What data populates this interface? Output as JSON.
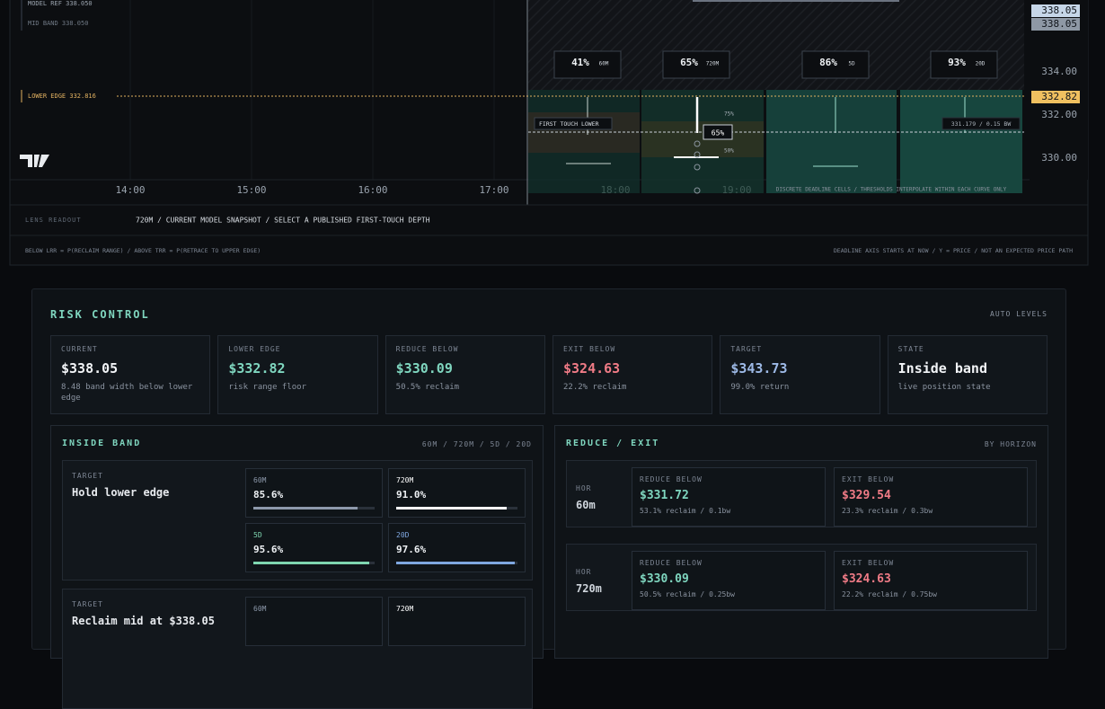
{
  "chart_panel": {
    "model_ref": "MODEL REF 338.050",
    "mid_band": "MID BAND 338.050",
    "lower_edge": "LOWER EDGE 332.816",
    "time_labels": [
      "14:00",
      "15:00",
      "16:00",
      "17:00",
      "18:00",
      "19:00"
    ],
    "price_labels": [
      "338.05",
      "338.05",
      "334.00",
      "332.00",
      "330.00",
      "332.82"
    ],
    "cells": [
      {
        "pct": "41%",
        "horizon": "60M"
      },
      {
        "pct": "65%",
        "horizon": "720M"
      },
      {
        "pct": "86%",
        "horizon": "5D"
      },
      {
        "pct": "93%",
        "horizon": "20D"
      }
    ],
    "first_touch": "FIRST TOUCH LOWER",
    "lens_pct": "65%",
    "level_hi": "75%",
    "level_lo": "50%",
    "probe": "331.179 / 0.15 BW",
    "cells_note": "DISCRETE DEADLINE CELLS / THRESHOLDS INTERPOLATE WITHIN EACH CURVE ONLY",
    "lens_label": "LENS READOUT",
    "lens_text": "720M / CURRENT MODEL SNAPSHOT / SELECT A PUBLISHED FIRST-TOUCH DEPTH",
    "footer_left": "BELOW LRR = P(RECLAIM RANGE) / ABOVE TRR = P(RETRACE TO UPPER EDGE)",
    "footer_right": "DEADLINE AXIS STARTS AT NOW / Y = PRICE / NOT AN EXPECTED PRICE PATH"
  },
  "risk_control": {
    "title": "RISK CONTROL",
    "mode": "AUTO LEVELS",
    "cards": [
      {
        "label": "CURRENT",
        "value": "$338.05",
        "sub": "8.48 band width below lower edge",
        "color": "#f2f4f7"
      },
      {
        "label": "LOWER EDGE",
        "value": "$332.82",
        "sub": "risk range floor",
        "color": "#7fd6bf"
      },
      {
        "label": "REDUCE BELOW",
        "value": "$330.09",
        "sub": "50.5% reclaim",
        "color": "#7fd6bf"
      },
      {
        "label": "EXIT BELOW",
        "value": "$324.63",
        "sub": "22.2% reclaim",
        "color": "#f07b86"
      },
      {
        "label": "TARGET",
        "value": "$343.73",
        "sub": "99.0% return",
        "color": "#9db9e6"
      },
      {
        "label": "STATE",
        "value": "Inside band",
        "sub": "live position state",
        "color": "#f2f4f7"
      }
    ],
    "inside_band": {
      "title": "INSIDE BAND",
      "horizons": "60M / 720M / 5D / 20D",
      "xlim": [
        0,
        100
      ],
      "targets": [
        {
          "label": "TARGET",
          "name": "Hold lower edge",
          "tiles": [
            {
              "name": "60M",
              "value": 85.6,
              "label": "85.6%",
              "color": "#8d99ab"
            },
            {
              "name": "720M",
              "value": 91.0,
              "label": "91.0%",
              "color": "#ffffff"
            },
            {
              "name": "5D",
              "value": 95.6,
              "label": "95.6%",
              "color": "#7fd6b0"
            },
            {
              "name": "20D",
              "value": 97.6,
              "label": "97.6%",
              "color": "#7fa7e0"
            }
          ]
        },
        {
          "label": "TARGET",
          "name": "Reclaim mid at $338.05",
          "tiles": [
            {
              "name": "60M",
              "color": "#8d99ab"
            },
            {
              "name": "720M",
              "color": "#ffffff"
            }
          ]
        }
      ]
    },
    "reduce_exit": {
      "title": "REDUCE / EXIT",
      "mode": "BY HORIZON",
      "rows": [
        {
          "hor_label": "HOR",
          "hor": "60m",
          "reduce": {
            "label": "REDUCE BELOW",
            "value": "$331.72",
            "sub": "53.1% reclaim / 0.1bw"
          },
          "exit": {
            "label": "EXIT BELOW",
            "value": "$329.54",
            "sub": "23.3% reclaim / 0.3bw"
          }
        },
        {
          "hor_label": "HOR",
          "hor": "720m",
          "reduce": {
            "label": "REDUCE BELOW",
            "value": "$330.09",
            "sub": "50.5% reclaim / 0.25bw"
          },
          "exit": {
            "label": "EXIT BELOW",
            "value": "$324.63",
            "sub": "22.2% reclaim / 0.75bw"
          }
        }
      ]
    }
  }
}
